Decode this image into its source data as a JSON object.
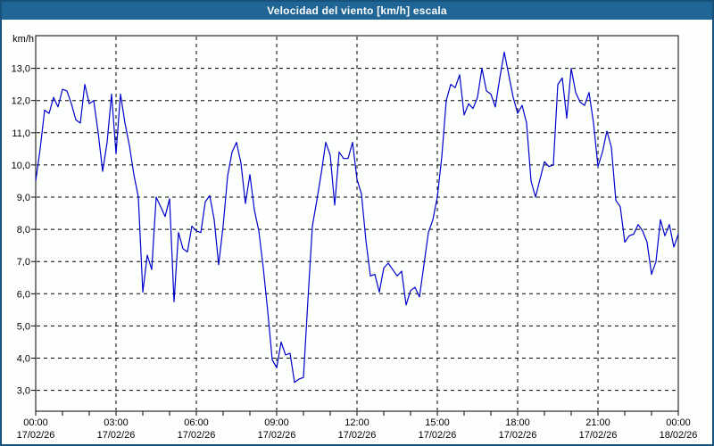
{
  "window": {
    "title": "Velocidad del viento [km/h] escala"
  },
  "colors": {
    "titlebar_bg": "#1F6596",
    "window_border": "#17527C",
    "background": "#FDFFFD",
    "plot_frame": "#000000",
    "grid": "#000000",
    "line": "#0000CC",
    "text": "#000000",
    "title_text": "#FFFFFF"
  },
  "chart_data": {
    "type": "line",
    "title": "Velocidad del viento [km/h] escala",
    "ylabel": "km/h",
    "xlabel": "",
    "legend": "none",
    "grid": "dashed",
    "ylim": [
      2.35,
      14.0
    ],
    "x_range_hours": [
      0,
      24
    ],
    "sample_interval_minutes": 10,
    "start_time": "00:00",
    "start_date": "17/02/26",
    "end_date": "18/02/26",
    "yticks": [
      {
        "value": 3,
        "label": "3,0"
      },
      {
        "value": 4,
        "label": "4,0"
      },
      {
        "value": 5,
        "label": "5,0"
      },
      {
        "value": 6,
        "label": "6,0"
      },
      {
        "value": 7,
        "label": "7,0"
      },
      {
        "value": 8,
        "label": "8,0"
      },
      {
        "value": 9,
        "label": "9,0"
      },
      {
        "value": 10,
        "label": "10,0"
      },
      {
        "value": 11,
        "label": "11,0"
      },
      {
        "value": 12,
        "label": "12,0"
      },
      {
        "value": 13,
        "label": "13,0"
      }
    ],
    "xticks": [
      {
        "hour": 0,
        "time": "00:00",
        "date": "17/02/26"
      },
      {
        "hour": 3,
        "time": "03:00",
        "date": "17/02/26"
      },
      {
        "hour": 6,
        "time": "06:00",
        "date": "17/02/26"
      },
      {
        "hour": 9,
        "time": "09:00",
        "date": "17/02/26"
      },
      {
        "hour": 12,
        "time": "12:00",
        "date": "17/02/26"
      },
      {
        "hour": 15,
        "time": "15:00",
        "date": "17/02/26"
      },
      {
        "hour": 18,
        "time": "18:00",
        "date": "17/02/26"
      },
      {
        "hour": 21,
        "time": "21:00",
        "date": "17/02/26"
      },
      {
        "hour": 24,
        "time": "00:00",
        "date": "18/02/26"
      }
    ],
    "values": [
      9.5,
      10.5,
      11.7,
      11.6,
      12.1,
      11.8,
      12.35,
      12.3,
      11.9,
      11.4,
      11.3,
      12.5,
      11.9,
      12.0,
      11.0,
      9.8,
      10.7,
      12.2,
      10.35,
      12.2,
      11.3,
      10.6,
      9.7,
      9.0,
      6.05,
      7.2,
      6.75,
      9.0,
      8.7,
      8.4,
      8.95,
      5.75,
      7.9,
      7.4,
      7.3,
      8.1,
      7.95,
      7.9,
      8.85,
      9.05,
      8.3,
      6.9,
      8.1,
      9.65,
      10.4,
      10.7,
      10.05,
      8.8,
      9.7,
      8.6,
      7.95,
      6.8,
      5.45,
      3.95,
      3.7,
      4.5,
      4.1,
      4.15,
      3.25,
      3.35,
      3.4,
      5.8,
      8.1,
      8.9,
      9.75,
      10.7,
      10.3,
      8.75,
      10.4,
      10.2,
      10.2,
      10.7,
      9.55,
      9.1,
      7.65,
      6.55,
      6.6,
      6.05,
      6.8,
      6.95,
      6.75,
      6.55,
      6.7,
      5.65,
      6.1,
      6.2,
      5.9,
      6.9,
      7.9,
      8.3,
      9.0,
      10.25,
      12.0,
      12.5,
      12.4,
      12.8,
      11.55,
      11.9,
      11.75,
      12.1,
      13.0,
      12.3,
      12.2,
      11.8,
      12.7,
      13.5,
      12.8,
      12.1,
      11.6,
      11.85,
      11.3,
      9.5,
      9.0,
      9.55,
      10.1,
      9.95,
      10.0,
      12.5,
      12.7,
      11.45,
      13.0,
      12.25,
      11.95,
      11.85,
      12.25,
      11.3,
      9.95,
      10.4,
      11.05,
      10.55,
      8.9,
      8.7,
      7.6,
      7.8,
      7.85,
      8.15,
      7.95,
      7.6,
      6.6,
      7.0,
      8.3,
      7.8,
      8.15,
      7.45,
      7.85
    ]
  }
}
